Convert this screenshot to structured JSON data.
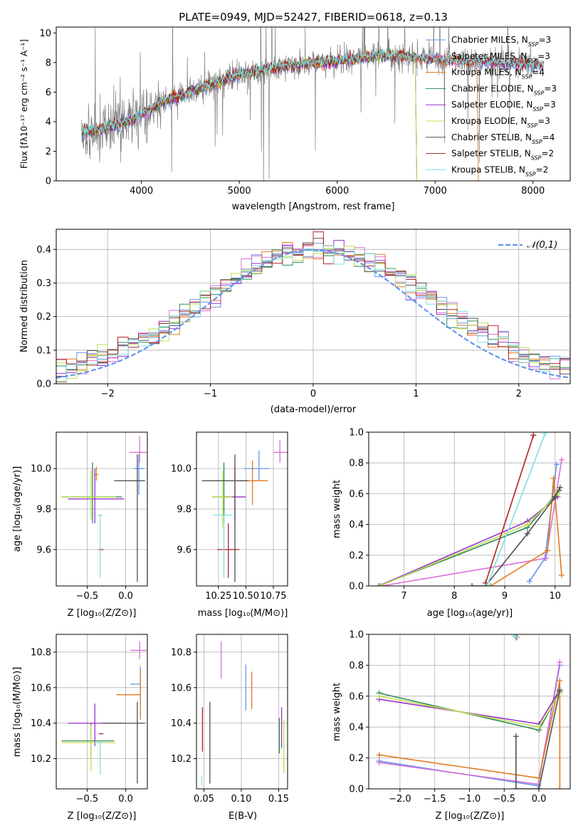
{
  "chart_data": [
    {
      "id": "spectrum",
      "type": "line",
      "title": "PLATE=0949, MJD=52427, FIBERID=0618, z=0.13",
      "xlabel": "wavelength [Angstrom, rest frame]",
      "ylabel": "Flux [fλ10⁻¹⁷ erg cm⁻² s⁻¹ A⁻¹]",
      "xlim": [
        3130,
        8380
      ],
      "ylim": [
        0,
        10.4
      ],
      "xticks": [
        4000,
        5000,
        6000,
        7000,
        8000
      ],
      "yticks": [
        0,
        2,
        4,
        6,
        8,
        10
      ],
      "legend_position": "right",
      "data_trace": {
        "name": "data",
        "color": "#808080",
        "wavelength_range": [
          3390,
          8110
        ],
        "continuum_x": [
          3390,
          3600,
          3800,
          4000,
          4200,
          4500,
          5000,
          5500,
          6000,
          6500,
          7000,
          7500,
          8000,
          8110
        ],
        "continuum_y": [
          3.3,
          3.5,
          3.9,
          4.4,
          5.3,
          6.0,
          7.2,
          7.8,
          8.1,
          8.5,
          8.2,
          8.0,
          7.8,
          7.8
        ]
      },
      "series": [
        {
          "name": "Chabrier MILES, N_SSP=3",
          "color": "#6495ed",
          "cutoff": null
        },
        {
          "name": "Salpeter MILES, N_SSP=3",
          "color": "#da70d6",
          "cutoff": null
        },
        {
          "name": "Kroupa MILES, N_SSP=4",
          "color": "#e07a20",
          "cutoff": 7430
        },
        {
          "name": "Chabrier ELODIE, N_SSP=3",
          "color": "#2e8b57",
          "cutoff": 6800
        },
        {
          "name": "Salpeter ELODIE, N_SSP=3",
          "color": "#9932cc",
          "cutoff": 6800
        },
        {
          "name": "Kroupa ELODIE, N_SSP=3",
          "color": "#c0e050",
          "cutoff": 6800
        },
        {
          "name": "Chabrier STELIB, N_SSP=4",
          "color": "#505050",
          "cutoff": null
        },
        {
          "name": "Salpeter STELIB, N_SSP=2",
          "color": "#b22222",
          "cutoff": null
        },
        {
          "name": "Kroupa STELIB, N_SSP=2",
          "color": "#80dfdf",
          "cutoff": null
        }
      ]
    },
    {
      "id": "residuals",
      "type": "line",
      "xlabel": "(data-model)/error",
      "ylabel": "Normed distribution",
      "xlim": [
        -2.5,
        2.5
      ],
      "ylim": [
        0,
        0.46
      ],
      "xticks": [
        -2,
        -1,
        0,
        1,
        2
      ],
      "yticks": [
        0.0,
        0.1,
        0.2,
        0.3,
        0.4
      ],
      "grid": true,
      "legend": {
        "label": "𝒩(0,1)",
        "position": "top-right",
        "color": "#6495ed",
        "style": "dashed"
      },
      "histogram": {
        "bin_width": 0.1,
        "bin_start": -2.5,
        "shape": "gaussian",
        "sigma": 1.0,
        "peak": 0.39
      }
    },
    {
      "id": "age_vs_Z",
      "type": "scatter",
      "xlabel": "Z [log₁₀(Z/Z⊙)]",
      "ylabel": "age  [log₁₀(age/yr)]",
      "xlim": [
        -0.9,
        0.28
      ],
      "ylim": [
        9.42,
        10.18
      ],
      "xticks": [
        -0.5,
        0.0
      ],
      "yticks": [
        9.6,
        9.8,
        10.0
      ],
      "grid": true,
      "points": [
        {
          "x": 0.17,
          "y": 10.0,
          "xerr": [
            0.07,
            0.07
          ],
          "yerr": [
            0.13,
            0.07
          ],
          "color": "#6495ed"
        },
        {
          "x": 0.18,
          "y": 10.08,
          "xerr": [
            0.13,
            0.1
          ],
          "yerr": [
            0.05,
            0.08
          ],
          "color": "#da70d6"
        },
        {
          "x": -0.38,
          "y": 9.97,
          "xerr": [
            0.03,
            0.03
          ],
          "yerr": [
            0.03,
            0.04
          ],
          "color": "#e07a20"
        },
        {
          "x": -0.43,
          "y": 9.86,
          "xerr": [
            0.4,
            0.38
          ],
          "yerr": [
            0.13,
            0.17
          ],
          "color": "#2e8b57"
        },
        {
          "x": -0.4,
          "y": 9.85,
          "xerr": [
            0.35,
            0.38
          ],
          "yerr": [
            0.12,
            0.15
          ],
          "color": "#9932cc"
        },
        {
          "x": -0.45,
          "y": 9.86,
          "xerr": [
            0.38,
            0.32
          ],
          "yerr": [
            0.11,
            0.13
          ],
          "color": "#c0e050"
        },
        {
          "x": 0.15,
          "y": 9.94,
          "xerr": [
            0.3,
            0.1
          ],
          "yerr": [
            0.5,
            0.13
          ],
          "color": "#505050"
        },
        {
          "x": -0.32,
          "y": 9.6,
          "xerr": [
            0.03,
            0.03
          ],
          "yerr": [
            0.0,
            0.0
          ],
          "color": "#b22222"
        },
        {
          "x": -0.33,
          "y": 9.77,
          "xerr": [
            0.03,
            0.03
          ],
          "yerr": [
            0.31,
            0.0
          ],
          "color": "#80dfdf"
        }
      ]
    },
    {
      "id": "age_vs_mass",
      "type": "scatter",
      "xlabel": "mass [log₁₀(M/M⊙)]",
      "ylabel": "",
      "xlim": [
        10.05,
        10.88
      ],
      "ylim": [
        9.42,
        10.18
      ],
      "xticks": [
        10.25,
        10.5,
        10.75
      ],
      "yticks": [
        9.6,
        9.8,
        10.0
      ],
      "grid": true,
      "points": [
        {
          "x": 10.62,
          "y": 10.0,
          "xerr": [
            0.14,
            0.1
          ],
          "yerr": [
            0.06,
            0.09
          ],
          "color": "#6495ed"
        },
        {
          "x": 10.81,
          "y": 10.08,
          "xerr": [
            0.06,
            0.07
          ],
          "yerr": [
            0.05,
            0.06
          ],
          "color": "#da70d6"
        },
        {
          "x": 10.56,
          "y": 9.94,
          "xerr": [
            0.14,
            0.14
          ],
          "yerr": [
            0.12,
            0.1
          ],
          "color": "#e07a20"
        },
        {
          "x": 10.3,
          "y": 9.86,
          "xerr": [
            0.1,
            0.1
          ],
          "yerr": [
            0.12,
            0.17
          ],
          "color": "#2e8b57"
        },
        {
          "x": 10.4,
          "y": 9.86,
          "xerr": [
            0.12,
            0.1
          ],
          "yerr": [
            0.12,
            0.15
          ],
          "color": "#9932cc"
        },
        {
          "x": 10.29,
          "y": 9.86,
          "xerr": [
            0.1,
            0.09
          ],
          "yerr": [
            0.15,
            0.13
          ],
          "color": "#c0e050"
        },
        {
          "x": 10.4,
          "y": 9.94,
          "xerr": [
            0.3,
            0.12
          ],
          "yerr": [
            0.5,
            0.13
          ],
          "color": "#505050"
        },
        {
          "x": 10.34,
          "y": 9.6,
          "xerr": [
            0.1,
            0.1
          ],
          "yerr": [
            0.14,
            0.13
          ],
          "color": "#b22222"
        },
        {
          "x": 10.3,
          "y": 9.77,
          "xerr": [
            0.1,
            0.08
          ],
          "yerr": [
            0.31,
            0.0
          ],
          "color": "#80dfdf"
        }
      ]
    },
    {
      "id": "mass_weight_vs_age",
      "type": "line",
      "xlabel": "age  [log₁₀(age/yr)]",
      "ylabel": "mass weight",
      "xlim": [
        6.3,
        10.3
      ],
      "ylim": [
        0,
        1.0
      ],
      "xticks": [
        7,
        8,
        9,
        10
      ],
      "yticks": [
        0.0,
        0.2,
        0.4,
        0.6,
        0.8,
        1.0
      ],
      "grid": true,
      "series": [
        {
          "color": "#6495ed",
          "x": [
            9.49,
            9.8,
            10.03
          ],
          "y": [
            0.03,
            0.18,
            0.79
          ]
        },
        {
          "color": "#da70d6",
          "x": [
            6.55,
            9.82,
            10.13
          ],
          "y": [
            0.0,
            0.18,
            0.82
          ]
        },
        {
          "color": "#e07a20",
          "x": [
            8.72,
            9.85,
            9.97,
            10.13
          ],
          "y": [
            0.0,
            0.23,
            0.7,
            0.07
          ]
        },
        {
          "color": "#2e8b57",
          "x": [
            6.5,
            9.45,
            10.08
          ],
          "y": [
            0.0,
            0.38,
            0.62
          ]
        },
        {
          "color": "#9932cc",
          "x": [
            6.5,
            9.45,
            10.05
          ],
          "y": [
            0.0,
            0.42,
            0.58
          ]
        },
        {
          "color": "#c0e050",
          "x": [
            6.52,
            9.45,
            10.07
          ],
          "y": [
            0.0,
            0.4,
            0.6
          ]
        },
        {
          "color": "#505050",
          "x": [
            8.35,
            8.62,
            9.45,
            10.0,
            10.1
          ],
          "y": [
            0.0,
            0.0,
            0.34,
            0.58,
            0.64
          ]
        },
        {
          "color": "#b22222",
          "x": [
            8.62,
            9.57
          ],
          "y": [
            0.02,
            0.98
          ]
        },
        {
          "color": "#80dfdf",
          "x": [
            8.66,
            9.8
          ],
          "y": [
            0.01,
            0.99
          ]
        }
      ]
    },
    {
      "id": "mass_vs_Z",
      "type": "scatter",
      "xlabel": "Z [log₁₀(Z/Z⊙)]",
      "ylabel": "mass [log₁₀(M/M⊙)]",
      "xlim": [
        -0.9,
        0.28
      ],
      "ylim": [
        10.03,
        10.9
      ],
      "xticks": [
        -0.5,
        0.0
      ],
      "yticks": [
        10.2,
        10.4,
        10.6,
        10.8
      ],
      "grid": true,
      "points": [
        {
          "x": 0.19,
          "y": 10.62,
          "xerr": [
            0.13,
            0.0
          ],
          "yerr": [
            0.12,
            0.1
          ],
          "color": "#6495ed"
        },
        {
          "x": 0.18,
          "y": 10.81,
          "xerr": [
            0.12,
            0.1
          ],
          "yerr": [
            0.05,
            0.05
          ],
          "color": "#da70d6"
        },
        {
          "x": 0.19,
          "y": 10.56,
          "xerr": [
            0.31,
            0.0
          ],
          "yerr": [
            0.14,
            0.14
          ],
          "color": "#e07a20"
        },
        {
          "x": -0.45,
          "y": 10.3,
          "xerr": [
            0.38,
            0.3
          ],
          "yerr": [
            0.1,
            0.1
          ],
          "color": "#2e8b57"
        },
        {
          "x": -0.4,
          "y": 10.4,
          "xerr": [
            0.35,
            0.38
          ],
          "yerr": [
            0.13,
            0.11
          ],
          "color": "#9932cc"
        },
        {
          "x": -0.45,
          "y": 10.29,
          "xerr": [
            0.38,
            0.32
          ],
          "yerr": [
            0.16,
            0.1
          ],
          "color": "#c0e050"
        },
        {
          "x": 0.15,
          "y": 10.4,
          "xerr": [
            0.45,
            0.1
          ],
          "yerr": [
            0.34,
            0.12
          ],
          "color": "#505050"
        },
        {
          "x": -0.32,
          "y": 10.34,
          "xerr": [
            0.03,
            0.03
          ],
          "yerr": [
            0.0,
            0.0
          ],
          "color": "#b22222"
        },
        {
          "x": -0.33,
          "y": 10.29,
          "xerr": [
            0.05,
            0.03
          ],
          "yerr": [
            0.18,
            0.0
          ],
          "color": "#80dfdf"
        }
      ]
    },
    {
      "id": "mass_vs_EBV",
      "type": "scatter",
      "xlabel": "E(B-V)",
      "ylabel": "",
      "xlim": [
        0.04,
        0.162
      ],
      "ylim": [
        10.03,
        10.9
      ],
      "xticks": [
        0.05,
        0.1,
        0.15
      ],
      "yticks": [
        10.2,
        10.4,
        10.6,
        10.8
      ],
      "grid": true,
      "points": [
        {
          "x": 0.106,
          "y": 10.6,
          "yerr": [
            0.13,
            0.13
          ],
          "color": "#6495ed"
        },
        {
          "x": 0.073,
          "y": 10.76,
          "yerr": [
            0.11,
            0.1
          ],
          "color": "#da70d6"
        },
        {
          "x": 0.114,
          "y": 10.58,
          "yerr": [
            0.1,
            0.11
          ],
          "color": "#e07a20"
        },
        {
          "x": 0.151,
          "y": 10.3,
          "yerr": [
            0.07,
            0.13
          ],
          "color": "#2e8b57"
        },
        {
          "x": 0.154,
          "y": 10.37,
          "yerr": [
            0.11,
            0.12
          ],
          "color": "#9932cc"
        },
        {
          "x": 0.157,
          "y": 10.28,
          "yerr": [
            0.16,
            0.14
          ],
          "color": "#c0e050"
        },
        {
          "x": 0.058,
          "y": 10.29,
          "yerr": [
            0.23,
            0.23
          ],
          "color": "#505050"
        },
        {
          "x": 0.048,
          "y": 10.36,
          "yerr": [
            0.12,
            0.13
          ],
          "color": "#b22222"
        },
        {
          "x": 0.047,
          "y": 10.1,
          "yerr": [
            0.05,
            0.0
          ],
          "color": "#80dfdf"
        }
      ]
    },
    {
      "id": "mass_weight_vs_Z",
      "type": "line",
      "xlabel": "Z [log₁₀(Z/Z⊙)]",
      "ylabel": "mass weight",
      "xlim": [
        -2.45,
        0.45
      ],
      "ylim": [
        0,
        1.0
      ],
      "xticks": [
        -2.0,
        -1.5,
        -1.0,
        -0.5,
        0.0
      ],
      "yticks": [
        0.0,
        0.2,
        0.4,
        0.6,
        0.8,
        1.0
      ],
      "grid": true,
      "series": [
        {
          "color": "#6495ed",
          "x": [
            -2.3,
            -0.01,
            0.3
          ],
          "y": [
            0.18,
            0.02,
            0.8
          ]
        },
        {
          "color": "#da70d6",
          "x": [
            -2.3,
            -0.01,
            0.3
          ],
          "y": [
            0.17,
            0.03,
            0.82
          ]
        },
        {
          "color": "#e07a20",
          "x": [
            -2.3,
            0.0,
            0.3,
            0.3
          ],
          "y": [
            0.22,
            0.07,
            0.7,
            0.0
          ]
        },
        {
          "color": "#2e8b57",
          "x": [
            -2.3,
            0.0,
            0.3
          ],
          "y": [
            0.62,
            0.38,
            0.63
          ]
        },
        {
          "color": "#9932cc",
          "x": [
            -2.3,
            0.0,
            0.3
          ],
          "y": [
            0.58,
            0.42,
            0.64
          ]
        },
        {
          "color": "#c0e050",
          "x": [
            -2.3,
            0.0,
            0.3
          ],
          "y": [
            0.6,
            0.4,
            0.62
          ]
        },
        {
          "color": "#505050",
          "x": [
            -0.33,
            -0.33,
            0.0,
            0.3
          ],
          "y": [
            0.34,
            0.0,
            0.0,
            0.64
          ]
        },
        {
          "color": "#b22222",
          "x": [
            -0.34,
            -0.32
          ],
          "y": [
            0.99,
            0.98
          ]
        },
        {
          "color": "#80dfdf",
          "x": [
            -0.35,
            -0.33
          ],
          "y": [
            0.99,
            0.98
          ]
        }
      ]
    }
  ]
}
